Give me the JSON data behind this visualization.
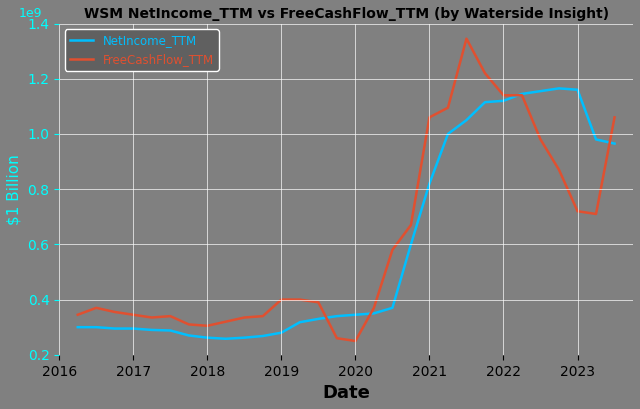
{
  "title": "WSM NetIncome_TTM vs FreeCashFlow_TTM (by Waterside Insight)",
  "xlabel": "Date",
  "ylabel": "$1 Billion",
  "background_color": "#808080",
  "title_color": "black",
  "axis_label_color": "cyan",
  "tick_label_color_y": "cyan",
  "tick_label_color_x": "black",
  "net_income_color": "#00bfff",
  "fcf_color": "#e05030",
  "legend_labels": [
    "NetIncome_TTM",
    "FreeCashFlow_TTM"
  ],
  "legend_bg": "#606060",
  "ylim": [
    0.2,
    1.4
  ],
  "yticks": [
    0.2,
    0.4,
    0.6,
    0.8,
    1.0,
    1.2,
    1.4
  ],
  "xlim": [
    2016.0,
    2023.75
  ],
  "xticks": [
    2016,
    2017,
    2018,
    2019,
    2020,
    2021,
    2022,
    2023
  ],
  "net_income_dates": [
    2016.25,
    2016.5,
    2016.75,
    2017.0,
    2017.25,
    2017.5,
    2017.75,
    2018.0,
    2018.25,
    2018.5,
    2018.75,
    2019.0,
    2019.25,
    2019.5,
    2019.75,
    2020.0,
    2020.25,
    2020.5,
    2020.75,
    2021.0,
    2021.25,
    2021.5,
    2021.75,
    2022.0,
    2022.25,
    2022.5,
    2022.75,
    2023.0,
    2023.25,
    2023.5
  ],
  "net_income_values": [
    0.3,
    0.3,
    0.295,
    0.295,
    0.29,
    0.288,
    0.27,
    0.262,
    0.258,
    0.262,
    0.268,
    0.28,
    0.318,
    0.33,
    0.34,
    0.345,
    0.35,
    0.37,
    0.6,
    0.82,
    1.0,
    1.05,
    1.115,
    1.12,
    1.145,
    1.155,
    1.165,
    1.16,
    0.98,
    0.965
  ],
  "fcf_dates": [
    2016.25,
    2016.5,
    2016.75,
    2017.0,
    2017.25,
    2017.5,
    2017.75,
    2018.0,
    2018.25,
    2018.5,
    2018.75,
    2019.0,
    2019.25,
    2019.5,
    2019.75,
    2020.0,
    2020.25,
    2020.5,
    2020.75,
    2021.0,
    2021.25,
    2021.5,
    2021.75,
    2022.0,
    2022.25,
    2022.5,
    2022.75,
    2023.0,
    2023.25,
    2023.5
  ],
  "fcf_values": [
    0.345,
    0.37,
    0.355,
    0.345,
    0.335,
    0.34,
    0.31,
    0.305,
    0.32,
    0.335,
    0.34,
    0.4,
    0.4,
    0.39,
    0.26,
    0.25,
    0.37,
    0.58,
    0.67,
    1.06,
    1.095,
    1.345,
    1.22,
    1.14,
    1.14,
    0.98,
    0.87,
    0.72,
    0.71,
    1.06
  ],
  "figsize": [
    6.4,
    4.09
  ],
  "dpi": 100
}
